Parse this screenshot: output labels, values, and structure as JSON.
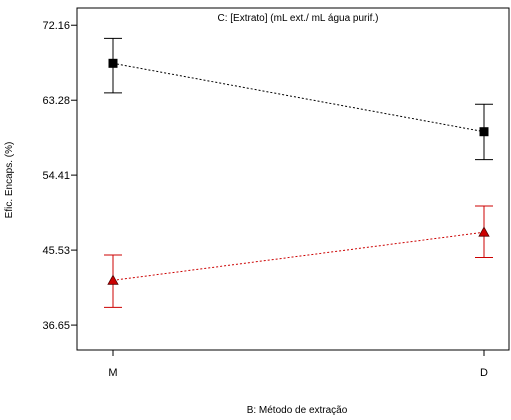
{
  "chart_data": {
    "type": "line",
    "title": "C: [Extrato] (mL ext./ mL água purif.)",
    "xlabel": "B: Método de extração",
    "ylabel": "Efic. Encaps. (%)",
    "categories": [
      "M",
      "D"
    ],
    "ylim": [
      33.7,
      74.2
    ],
    "yticks": [
      "36.65",
      "45.53",
      "54.41",
      "63.28",
      "72.16"
    ],
    "grid": false,
    "series": [
      {
        "marker": "square",
        "color": "#000000",
        "values": [
          67.65,
          59.55
        ],
        "error_low": [
          64.15,
          56.25
        ],
        "error_high": [
          70.6,
          62.8
        ]
      },
      {
        "marker": "triangle",
        "color": "#cc0000",
        "values": [
          41.95,
          47.65
        ],
        "error_low": [
          38.75,
          44.65
        ],
        "error_high": [
          44.95,
          50.75
        ]
      }
    ]
  }
}
